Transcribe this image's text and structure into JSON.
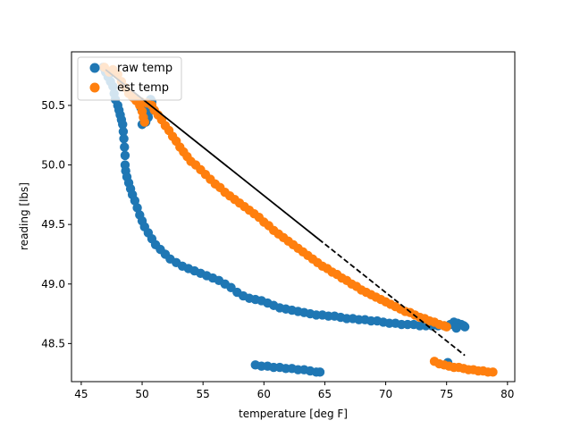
{
  "chart_data": {
    "type": "scatter",
    "title": "",
    "xlabel": "temperature [deg F]",
    "ylabel": "reading [lbs]",
    "xlim": [
      44.2,
      80.6
    ],
    "ylim": [
      48.18,
      50.95
    ],
    "xticks": [
      45,
      50,
      55,
      60,
      65,
      70,
      75,
      80
    ],
    "yticks": [
      48.5,
      49.0,
      49.5,
      50.0,
      50.5
    ],
    "ytick_labels": [
      "48.5",
      "49.0",
      "49.5",
      "50.0",
      "50.5"
    ],
    "legend_position": "top-left",
    "series": [
      {
        "name": "raw temp",
        "color": "#1f77b4",
        "points": [
          [
            46.8,
            50.82
          ],
          [
            47.0,
            50.78
          ],
          [
            47.2,
            50.74
          ],
          [
            47.4,
            50.7
          ],
          [
            47.6,
            50.66
          ],
          [
            47.7,
            50.6
          ],
          [
            47.8,
            50.55
          ],
          [
            48.0,
            50.5
          ],
          [
            48.1,
            50.46
          ],
          [
            48.2,
            50.42
          ],
          [
            48.3,
            50.38
          ],
          [
            48.4,
            50.34
          ],
          [
            48.45,
            50.28
          ],
          [
            48.5,
            50.22
          ],
          [
            48.55,
            50.15
          ],
          [
            48.6,
            50.08
          ],
          [
            48.6,
            50.0
          ],
          [
            48.65,
            49.95
          ],
          [
            48.75,
            49.9
          ],
          [
            48.9,
            49.85
          ],
          [
            49.05,
            49.8
          ],
          [
            49.2,
            49.75
          ],
          [
            49.4,
            49.7
          ],
          [
            49.6,
            49.64
          ],
          [
            49.8,
            49.58
          ],
          [
            50.0,
            49.53
          ],
          [
            50.2,
            49.48
          ],
          [
            50.5,
            49.43
          ],
          [
            50.8,
            49.38
          ],
          [
            51.1,
            49.33
          ],
          [
            51.5,
            49.29
          ],
          [
            51.9,
            49.25
          ],
          [
            52.3,
            49.21
          ],
          [
            52.8,
            49.18
          ],
          [
            53.3,
            49.15
          ],
          [
            53.8,
            49.13
          ],
          [
            54.3,
            49.11
          ],
          [
            54.8,
            49.09
          ],
          [
            55.3,
            49.07
          ],
          [
            55.8,
            49.05
          ],
          [
            56.3,
            49.03
          ],
          [
            56.8,
            49.0
          ],
          [
            57.3,
            48.97
          ],
          [
            57.8,
            48.93
          ],
          [
            58.3,
            48.9
          ],
          [
            58.8,
            48.88
          ],
          [
            59.3,
            48.87
          ],
          [
            59.8,
            48.86
          ],
          [
            60.3,
            48.84
          ],
          [
            60.8,
            48.82
          ],
          [
            61.3,
            48.8
          ],
          [
            61.8,
            48.79
          ],
          [
            62.3,
            48.78
          ],
          [
            62.8,
            48.77
          ],
          [
            63.3,
            48.76
          ],
          [
            63.8,
            48.75
          ],
          [
            64.3,
            48.74
          ],
          [
            64.8,
            48.74
          ],
          [
            65.3,
            48.73
          ],
          [
            65.8,
            48.73
          ],
          [
            66.3,
            48.72
          ],
          [
            66.8,
            48.71
          ],
          [
            67.3,
            48.71
          ],
          [
            67.8,
            48.7
          ],
          [
            68.3,
            48.7
          ],
          [
            68.8,
            48.69
          ],
          [
            69.3,
            48.69
          ],
          [
            69.8,
            48.68
          ],
          [
            70.3,
            48.67
          ],
          [
            70.8,
            48.67
          ],
          [
            71.3,
            48.66
          ],
          [
            71.8,
            48.66
          ],
          [
            72.3,
            48.66
          ],
          [
            72.8,
            48.65
          ],
          [
            73.3,
            48.65
          ],
          [
            73.8,
            48.65
          ],
          [
            74.3,
            48.65
          ],
          [
            74.8,
            48.65
          ],
          [
            75.3,
            48.66
          ],
          [
            75.6,
            48.68
          ],
          [
            75.9,
            48.67
          ],
          [
            76.2,
            48.66
          ],
          [
            76.4,
            48.65
          ],
          [
            76.5,
            48.64
          ],
          [
            75.8,
            48.63
          ],
          [
            50.0,
            50.34
          ],
          [
            50.3,
            50.36
          ],
          [
            50.5,
            50.4
          ],
          [
            50.6,
            50.45
          ],
          [
            50.5,
            50.5
          ],
          [
            50.7,
            50.55
          ],
          [
            50.8,
            50.53
          ],
          [
            49.9,
            50.48
          ],
          [
            50.2,
            50.42
          ],
          [
            49.5,
            50.55
          ],
          [
            59.3,
            48.32
          ],
          [
            59.8,
            48.31
          ],
          [
            60.3,
            48.31
          ],
          [
            60.8,
            48.3
          ],
          [
            61.3,
            48.3
          ],
          [
            61.8,
            48.29
          ],
          [
            62.3,
            48.29
          ],
          [
            62.8,
            48.28
          ],
          [
            63.3,
            48.28
          ],
          [
            63.8,
            48.27
          ],
          [
            64.3,
            48.26
          ],
          [
            64.6,
            48.26
          ],
          [
            75.1,
            48.34
          ]
        ]
      },
      {
        "name": "est temp",
        "color": "#ff7f0e",
        "points": [
          [
            46.9,
            50.82
          ],
          [
            47.3,
            50.78
          ],
          [
            47.6,
            50.8
          ],
          [
            48.0,
            50.76
          ],
          [
            48.3,
            50.7
          ],
          [
            48.6,
            50.65
          ],
          [
            48.9,
            50.6
          ],
          [
            49.2,
            50.57
          ],
          [
            49.5,
            50.54
          ],
          [
            49.8,
            50.5
          ],
          [
            50.0,
            50.45
          ],
          [
            50.1,
            50.4
          ],
          [
            50.2,
            50.36
          ],
          [
            49.9,
            50.53
          ],
          [
            50.4,
            50.52
          ],
          [
            50.8,
            50.5
          ],
          [
            51.0,
            50.46
          ],
          [
            51.3,
            50.42
          ],
          [
            51.6,
            50.38
          ],
          [
            51.9,
            50.33
          ],
          [
            52.2,
            50.29
          ],
          [
            52.5,
            50.24
          ],
          [
            52.8,
            50.2
          ],
          [
            53.1,
            50.15
          ],
          [
            53.4,
            50.11
          ],
          [
            53.7,
            50.07
          ],
          [
            54.0,
            50.03
          ],
          [
            54.4,
            50.0
          ],
          [
            54.8,
            49.96
          ],
          [
            55.2,
            49.92
          ],
          [
            55.6,
            49.88
          ],
          [
            56.0,
            49.84
          ],
          [
            56.4,
            49.81
          ],
          [
            56.8,
            49.77
          ],
          [
            57.2,
            49.74
          ],
          [
            57.6,
            49.71
          ],
          [
            58.0,
            49.68
          ],
          [
            58.4,
            49.65
          ],
          [
            58.8,
            49.62
          ],
          [
            59.2,
            49.59
          ],
          [
            59.6,
            49.56
          ],
          [
            60.0,
            49.52
          ],
          [
            60.4,
            49.49
          ],
          [
            60.8,
            49.45
          ],
          [
            61.2,
            49.42
          ],
          [
            61.6,
            49.39
          ],
          [
            62.0,
            49.36
          ],
          [
            62.4,
            49.33
          ],
          [
            62.8,
            49.3
          ],
          [
            63.2,
            49.27
          ],
          [
            63.6,
            49.24
          ],
          [
            64.0,
            49.21
          ],
          [
            64.4,
            49.18
          ],
          [
            64.8,
            49.15
          ],
          [
            65.2,
            49.13
          ],
          [
            65.6,
            49.1
          ],
          [
            66.0,
            49.08
          ],
          [
            66.4,
            49.05
          ],
          [
            66.8,
            49.03
          ],
          [
            67.2,
            49.0
          ],
          [
            67.6,
            48.98
          ],
          [
            68.0,
            48.95
          ],
          [
            68.4,
            48.93
          ],
          [
            68.8,
            48.91
          ],
          [
            69.2,
            48.89
          ],
          [
            69.6,
            48.87
          ],
          [
            70.0,
            48.85
          ],
          [
            70.4,
            48.83
          ],
          [
            70.8,
            48.81
          ],
          [
            71.2,
            48.79
          ],
          [
            71.6,
            48.77
          ],
          [
            72.0,
            48.76
          ],
          [
            72.4,
            48.74
          ],
          [
            72.8,
            48.72
          ],
          [
            73.2,
            48.71
          ],
          [
            73.6,
            48.69
          ],
          [
            74.0,
            48.68
          ],
          [
            74.4,
            48.66
          ],
          [
            74.8,
            48.65
          ],
          [
            75.0,
            48.64
          ],
          [
            74.0,
            48.35
          ],
          [
            74.4,
            48.33
          ],
          [
            74.8,
            48.32
          ],
          [
            75.2,
            48.31
          ],
          [
            75.6,
            48.3
          ],
          [
            76.0,
            48.3
          ],
          [
            76.4,
            48.29
          ],
          [
            76.8,
            48.28
          ],
          [
            77.2,
            48.28
          ],
          [
            77.6,
            48.27
          ],
          [
            78.0,
            48.27
          ],
          [
            78.4,
            48.26
          ],
          [
            78.8,
            48.26
          ]
        ]
      }
    ],
    "fit_line": {
      "color": "#000000",
      "style": "solid-then-dashed",
      "x": [
        47.0,
        76.5
      ],
      "y": [
        50.8,
        48.4
      ],
      "dash_start_x": 64.5
    }
  }
}
